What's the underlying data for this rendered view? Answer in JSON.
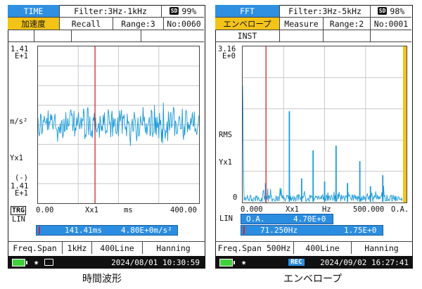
{
  "left": {
    "header": {
      "mode": "TIME",
      "filter": "Filter:3Hz-1kHz",
      "sd_label": "SD",
      "sd_percent": "99%"
    },
    "row2": {
      "quantity": "加速度",
      "recall": "Recall",
      "range": "Range:3",
      "number": "No:0060"
    },
    "y_axis": {
      "top_value": "1.41",
      "top_exp": "E+1",
      "unit": "m/s²",
      "scale": "Yx1",
      "neg_sign": "(-)",
      "bottom_value": "1.41",
      "bottom_exp": "E+1"
    },
    "x_axis": {
      "trigger": "TRG",
      "start": "0.00",
      "scale": "Xx1",
      "unit": "ms",
      "end": "400.00"
    },
    "lin": "LIN",
    "cursor": {
      "time": "141.41ms",
      "value": "4.80E+0m/s²",
      "position_fraction": 0.354
    },
    "bottom": {
      "freq_span": "Freq.Span",
      "freq_value": "1kHz",
      "lines": "400Line",
      "window": "Hanning"
    },
    "status": {
      "datetime": "2024/08/01  10:30:59"
    },
    "caption": "時間波形",
    "icons": [
      "battery-icon",
      "brightness-icon",
      "display-icon"
    ]
  },
  "right": {
    "header": {
      "mode": "FFT",
      "filter": "Filter:3Hz-5kHz",
      "sd_label": "SD",
      "sd_percent": "98%"
    },
    "row2": {
      "quantity": "エンベロープ",
      "measure": "Measure",
      "range": "Range:2",
      "number": "No:0001"
    },
    "row3": {
      "inst": "INST"
    },
    "y_axis": {
      "top_value": "3.16",
      "top_exp": "E+0",
      "rms": "RMS",
      "scale": "Yx1",
      "zero": "0"
    },
    "x_axis": {
      "start": "0.000",
      "scale": "Xx1",
      "unit": "Hz",
      "end": "500.000",
      "oa": "O.A."
    },
    "lin": "LIN",
    "oa_box": {
      "label": "O.A.",
      "value": "4.70E+0"
    },
    "cursor": {
      "freq": "71.250Hz",
      "value": "1.75E+0",
      "position_fraction": 0.1425
    },
    "bottom": {
      "freq_span": "Freq.Span",
      "freq_value": "500Hz",
      "lines": "400Line",
      "window": "Hanning"
    },
    "status": {
      "rec": "REC",
      "datetime": "2024/09/02  16:27:41"
    },
    "caption": "エンベロープ",
    "icons": [
      "battery-icon",
      "brightness-icon"
    ]
  },
  "colors": {
    "accent_blue": "#2f8fe0",
    "header_gold": "#f3c318",
    "waveform": "#1b9ad8",
    "cursor_red": "#d2242a"
  }
}
